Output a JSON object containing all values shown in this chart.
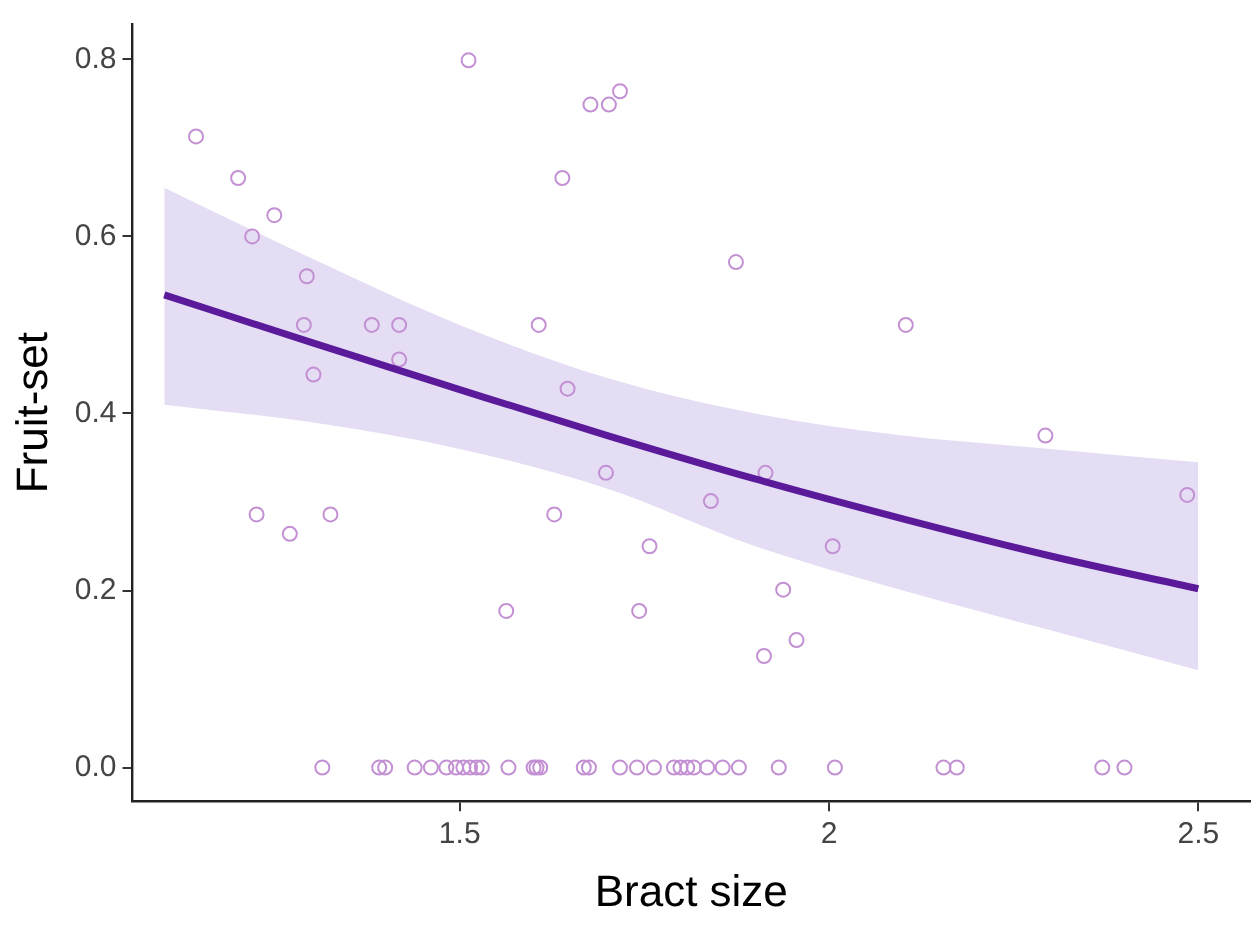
{
  "chart_data": {
    "type": "scatter",
    "xlabel": "Bract size",
    "ylabel": "Fruit-set",
    "xlim": [
      1.057,
      2.57
    ],
    "ylim": [
      -0.038,
      0.84
    ],
    "xticks": [
      1.5,
      2,
      2.5
    ],
    "yticks": [
      {
        "value": 0,
        "label": "0.0"
      },
      {
        "value": 0.2,
        "label": "0.2"
      },
      {
        "value": 0.4,
        "label": "0.4"
      },
      {
        "value": 0.6,
        "label": "0.6"
      },
      {
        "value": 0.8,
        "label": "0.8"
      }
    ],
    "grid": false,
    "legend": false,
    "marker": "circle",
    "series": [
      {
        "type": "scatter",
        "color": "#c390d4",
        "x": [
          1.143,
          1.2,
          1.249,
          1.219,
          1.293,
          1.289,
          1.381,
          1.418,
          1.418,
          1.302,
          1.512,
          1.677,
          1.702,
          1.717,
          1.639,
          1.607,
          1.646,
          1.874,
          2.104,
          2.293,
          1.698,
          1.225,
          1.325,
          1.27,
          1.628,
          1.757,
          1.563,
          1.743,
          1.914,
          1.84,
          2.005,
          1.938,
          1.956,
          1.912,
          2.485,
          1.314,
          1.391,
          1.399,
          1.439,
          1.461,
          1.482,
          1.495,
          1.505,
          1.514,
          1.523,
          1.53,
          1.566,
          1.6,
          1.604,
          1.609,
          1.668,
          1.675,
          1.717,
          1.74,
          1.763,
          1.79,
          1.799,
          1.808,
          1.817,
          1.835,
          1.856,
          1.878,
          1.932,
          2.008,
          2.155,
          2.173,
          2.37,
          2.4
        ],
        "values": [
          0.713,
          0.666,
          0.624,
          0.6,
          0.555,
          0.5,
          0.5,
          0.5,
          0.461,
          0.444,
          0.799,
          0.749,
          0.749,
          0.764,
          0.666,
          0.5,
          0.428,
          0.571,
          0.5,
          0.375,
          0.333,
          0.286,
          0.286,
          0.264,
          0.286,
          0.25,
          0.177,
          0.177,
          0.333,
          0.301,
          0.25,
          0.201,
          0.144,
          0.126,
          0.308,
          0,
          0,
          0,
          0,
          0,
          0,
          0,
          0,
          0,
          0,
          0,
          0,
          0,
          0,
          0,
          0,
          0,
          0,
          0,
          0,
          0,
          0,
          0,
          0,
          0,
          0,
          0,
          0,
          0,
          0,
          0,
          0,
          0
        ]
      },
      {
        "type": "line",
        "color": "#5a1a9a",
        "marker": "none",
        "x": [
          1.1,
          1.3,
          1.5,
          1.7,
          1.9,
          2.1,
          2.3,
          2.5
        ],
        "values": [
          0.534,
          0.48,
          0.427,
          0.375,
          0.326,
          0.281,
          0.239,
          0.202
        ],
        "lower": [
          0.41,
          0.39,
          0.36,
          0.315,
          0.25,
          0.2,
          0.155,
          0.11
        ],
        "upper": [
          0.655,
          0.575,
          0.5,
          0.44,
          0.4,
          0.375,
          0.36,
          0.345
        ]
      }
    ]
  }
}
